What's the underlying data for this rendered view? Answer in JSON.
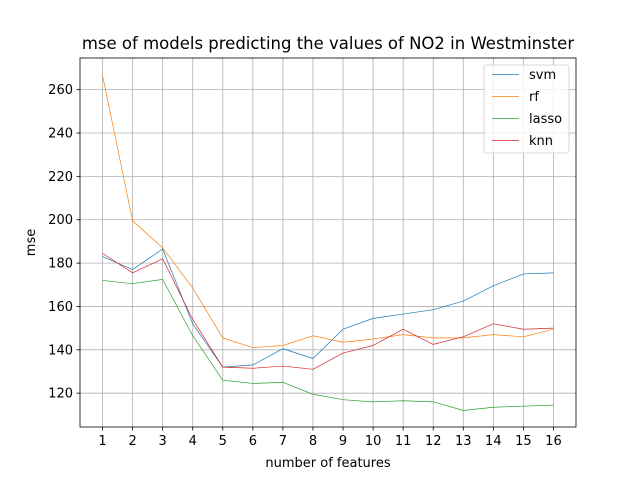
{
  "chart_data": {
    "type": "line",
    "title": "mse of models predicting the values of NO2 in Westminster",
    "xlabel": "number of features",
    "ylabel": "mse",
    "x": [
      1,
      2,
      3,
      4,
      5,
      6,
      7,
      8,
      9,
      10,
      11,
      12,
      13,
      14,
      15,
      16
    ],
    "xlim": [
      0.25,
      16.75
    ],
    "ylim": [
      104.4,
      274.6
    ],
    "yticks": [
      120,
      140,
      160,
      180,
      200,
      220,
      240,
      260
    ],
    "grid": true,
    "legend_position": "top-right",
    "series": [
      {
        "name": "svm",
        "color": "#1f77b4",
        "values": [
          183,
          177,
          186.5,
          152,
          132,
          133,
          140.5,
          136,
          149.5,
          154.5,
          156.5,
          158.5,
          162.5,
          169.5,
          175,
          175.5
        ]
      },
      {
        "name": "rf",
        "color": "#ff7f0e",
        "values": [
          266.5,
          199.5,
          187,
          168.5,
          145.5,
          141,
          142,
          146.5,
          143.5,
          145,
          147,
          145.5,
          145.5,
          147,
          146,
          149.5
        ]
      },
      {
        "name": "lasso",
        "color": "#2ca02c",
        "values": [
          172,
          170.5,
          172.5,
          146.5,
          126,
          124.5,
          125,
          119.5,
          117,
          116,
          116.5,
          116,
          112,
          113.5,
          114,
          114.5
        ]
      },
      {
        "name": "knn",
        "color": "#d62728",
        "values": [
          184.5,
          175.5,
          182,
          154,
          132,
          131.5,
          132.5,
          131,
          138.5,
          142,
          149.5,
          142.5,
          146,
          152,
          149.5,
          150
        ]
      }
    ]
  }
}
